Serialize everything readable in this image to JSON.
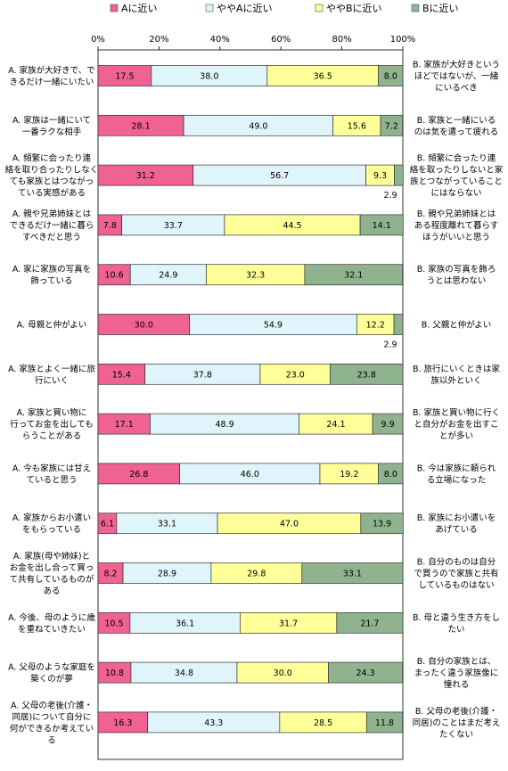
{
  "chart_data": {
    "type": "bar",
    "stacked": true,
    "orientation": "horizontal",
    "percent_stacked": true,
    "xlim": [
      0,
      100
    ],
    "x_ticks": [
      "0%",
      "20%",
      "40%",
      "60%",
      "80%",
      "100%"
    ],
    "legend_placement": "top",
    "grid": false,
    "series": [
      {
        "name": "Aに近い",
        "color": "#f06292"
      },
      {
        "name": "ややAに近い",
        "color": "#dff5fb"
      },
      {
        "name": "ややBに近い",
        "color": "#ffff99"
      },
      {
        "name": "Bに近い",
        "color": "#8fb38f"
      }
    ],
    "rows": [
      {
        "a_label": [
          "A. 家族が大好きで、で",
          "きるだけ一緒にいたい"
        ],
        "b_label": [
          "B. 家族が大好きという",
          "ほどではないが、一緒",
          "にいるべき"
        ],
        "values": [
          17.5,
          38.0,
          36.5,
          8.0
        ],
        "labels": [
          "17.5",
          "38.0",
          "36.5",
          "8.0"
        ],
        "outside_label": ""
      },
      {
        "a_label": [
          "A. 家族は一緒にいて",
          "一番ラクな相手"
        ],
        "b_label": [
          "B. 家族と一緒にいる",
          "のは気を遣って疲れる"
        ],
        "values": [
          28.1,
          49.0,
          15.6,
          7.2
        ],
        "labels": [
          "28.1",
          "49.0",
          "15.6",
          "7.2"
        ],
        "outside_label": ""
      },
      {
        "a_label": [
          "A. 頻繁に会ったり連",
          "絡を取り合ったりしなく",
          "ても家族とはつながっ",
          "ている実感がある"
        ],
        "b_label": [
          "B. 頻繁に会ったり連",
          "絡を取ったりしないと家",
          "族とつながっていること",
          "にはならない"
        ],
        "values": [
          31.2,
          56.7,
          9.3,
          2.9
        ],
        "labels": [
          "31.2",
          "56.7",
          "9.3",
          ""
        ],
        "outside_label": "2.9"
      },
      {
        "a_label": [
          "A. 親や兄弟姉妹とは",
          "できるだけ一緒に暮ら",
          "すべきだと思う"
        ],
        "b_label": [
          "B. 親や兄弟姉妹とは",
          "ある程度離れて暮らす",
          "ほうがいいと思う"
        ],
        "values": [
          7.8,
          33.7,
          44.5,
          14.1
        ],
        "labels": [
          "7.8",
          "33.7",
          "44.5",
          "14.1"
        ],
        "outside_label": ""
      },
      {
        "a_label": [
          "A. 家に家族の写真を",
          "飾っている"
        ],
        "b_label": [
          "B. 家族の写真を飾ろ",
          "うとは思わない"
        ],
        "values": [
          10.6,
          24.9,
          32.3,
          32.1
        ],
        "labels": [
          "10.6",
          "24.9",
          "32.3",
          "32.1"
        ],
        "outside_label": ""
      },
      {
        "a_label": [
          "A. 母親と仲がよい"
        ],
        "b_label": [
          "B. 父親と仲がよい"
        ],
        "values": [
          30.0,
          54.9,
          12.2,
          2.9
        ],
        "labels": [
          "30.0",
          "54.9",
          "12.2",
          ""
        ],
        "outside_label": "2.9"
      },
      {
        "a_label": [
          "A. 家族とよく一緒に旅",
          "行にいく"
        ],
        "b_label": [
          "B. 旅行にいくときは家",
          "族以外といく"
        ],
        "values": [
          15.4,
          37.8,
          23.0,
          23.8
        ],
        "labels": [
          "15.4",
          "37.8",
          "23.0",
          "23.8"
        ],
        "outside_label": ""
      },
      {
        "a_label": [
          "A. 家族と買い物に",
          "行ってお金を出しても",
          "らうことがある"
        ],
        "b_label": [
          "B. 家族と買い物に行く",
          "と自分がお金を出すこ",
          "とが多い"
        ],
        "values": [
          17.1,
          48.9,
          24.1,
          9.9
        ],
        "labels": [
          "17.1",
          "48.9",
          "24.1",
          "9.9"
        ],
        "outside_label": ""
      },
      {
        "a_label": [
          "A. 今も家族には甘え",
          "ていると思う"
        ],
        "b_label": [
          "B. 今は家族に頼られ",
          "る立場になった"
        ],
        "values": [
          26.8,
          46.0,
          19.2,
          8.0
        ],
        "labels": [
          "26.8",
          "46.0",
          "19.2",
          "8.0"
        ],
        "outside_label": ""
      },
      {
        "a_label": [
          "A. 家族からお小遣い",
          "をもらっている"
        ],
        "b_label": [
          "B. 家族にお小遣いを",
          "あげている"
        ],
        "values": [
          6.1,
          33.1,
          47.0,
          13.9
        ],
        "labels": [
          "6.1",
          "33.1",
          "47.0",
          "13.9"
        ],
        "outside_label": ""
      },
      {
        "a_label": [
          "A. 家族(母や姉妹)と",
          "お金を出し合って買っ",
          "て共有しているものが",
          "ある"
        ],
        "b_label": [
          "B. 自分のものは自分",
          "で買うので家族と共有",
          "しているものはない"
        ],
        "values": [
          8.2,
          28.9,
          29.8,
          33.1
        ],
        "labels": [
          "8.2",
          "28.9",
          "29.8",
          "33.1"
        ],
        "outside_label": ""
      },
      {
        "a_label": [
          "A. 今後、母のように歳",
          "を重ねていきたい"
        ],
        "b_label": [
          "B. 母と違う生き方をし",
          "たい"
        ],
        "values": [
          10.5,
          36.1,
          31.7,
          21.7
        ],
        "labels": [
          "10.5",
          "36.1",
          "31.7",
          "21.7"
        ],
        "outside_label": ""
      },
      {
        "a_label": [
          "A. 父母のような家庭を",
          "築くのが夢"
        ],
        "b_label": [
          "B. 自分の家族とは、",
          "まったく違う家族像に",
          "憧れる"
        ],
        "values": [
          10.8,
          34.8,
          30.0,
          24.3
        ],
        "labels": [
          "10.8",
          "34.8",
          "30.0",
          "24.3"
        ],
        "outside_label": ""
      },
      {
        "a_label": [
          "A. 父母の老後(介護・",
          "同居)について自分に",
          "何ができるか考えてい",
          "る"
        ],
        "b_label": [
          "B. 父母の老後(介護・",
          "同居)のことはまだ考え",
          "たくない"
        ],
        "values": [
          16.3,
          43.3,
          28.5,
          11.8
        ],
        "labels": [
          "16.3",
          "43.3",
          "28.5",
          "11.8"
        ],
        "outside_label": ""
      }
    ]
  }
}
